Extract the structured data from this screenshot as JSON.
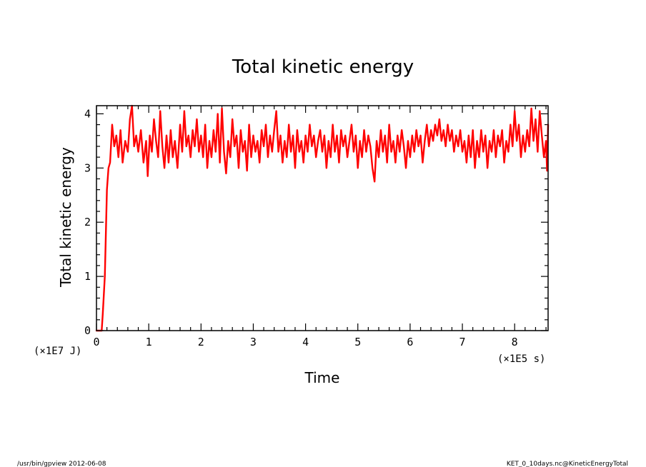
{
  "footer": {
    "left": "/usr/bin/gpview   2012-06-08",
    "right": "KET_0_10days.nc@KineticEnergyTotal"
  },
  "chart_data": {
    "type": "line",
    "title": "Total kinetic energy",
    "xlabel": "Time",
    "ylabel": "Total kinetic energy",
    "x_scale_label": "(×1E5 s)",
    "y_scale_label": "(×1E7 J)",
    "xlim": [
      0,
      8.64
    ],
    "ylim": [
      0,
      4.15
    ],
    "xticks": [
      0,
      1,
      2,
      3,
      4,
      5,
      6,
      7,
      8
    ],
    "yticks": [
      0,
      1,
      2,
      3,
      4
    ],
    "grid": false,
    "legend": "none",
    "line_color": "#ff0000",
    "series": [
      {
        "values": [
          [
            0.0,
            0.0
          ],
          [
            0.1,
            0.0
          ],
          [
            0.12,
            0.3
          ],
          [
            0.16,
            1.0
          ],
          [
            0.2,
            2.6
          ],
          [
            0.23,
            3.0
          ],
          [
            0.26,
            3.1
          ],
          [
            0.3,
            3.8
          ],
          [
            0.34,
            3.4
          ],
          [
            0.38,
            3.6
          ],
          [
            0.42,
            3.2
          ],
          [
            0.46,
            3.7
          ],
          [
            0.5,
            3.1
          ],
          [
            0.55,
            3.5
          ],
          [
            0.6,
            3.3
          ],
          [
            0.64,
            3.9
          ],
          [
            0.68,
            4.15
          ],
          [
            0.72,
            3.4
          ],
          [
            0.76,
            3.6
          ],
          [
            0.8,
            3.3
          ],
          [
            0.85,
            3.7
          ],
          [
            0.9,
            3.1
          ],
          [
            0.95,
            3.5
          ],
          [
            0.98,
            2.85
          ],
          [
            1.02,
            3.6
          ],
          [
            1.06,
            3.3
          ],
          [
            1.1,
            3.9
          ],
          [
            1.14,
            3.5
          ],
          [
            1.18,
            3.2
          ],
          [
            1.22,
            4.05
          ],
          [
            1.26,
            3.4
          ],
          [
            1.3,
            3.0
          ],
          [
            1.34,
            3.6
          ],
          [
            1.38,
            3.1
          ],
          [
            1.42,
            3.7
          ],
          [
            1.46,
            3.2
          ],
          [
            1.5,
            3.5
          ],
          [
            1.55,
            3.0
          ],
          [
            1.6,
            3.8
          ],
          [
            1.64,
            3.3
          ],
          [
            1.68,
            4.05
          ],
          [
            1.72,
            3.4
          ],
          [
            1.76,
            3.6
          ],
          [
            1.8,
            3.2
          ],
          [
            1.84,
            3.7
          ],
          [
            1.88,
            3.4
          ],
          [
            1.92,
            3.9
          ],
          [
            1.96,
            3.3
          ],
          [
            2.0,
            3.6
          ],
          [
            2.04,
            3.2
          ],
          [
            2.08,
            3.8
          ],
          [
            2.12,
            3.0
          ],
          [
            2.16,
            3.5
          ],
          [
            2.2,
            3.2
          ],
          [
            2.24,
            3.7
          ],
          [
            2.28,
            3.3
          ],
          [
            2.32,
            4.0
          ],
          [
            2.36,
            3.1
          ],
          [
            2.4,
            4.1
          ],
          [
            2.44,
            3.3
          ],
          [
            2.48,
            2.9
          ],
          [
            2.52,
            3.5
          ],
          [
            2.56,
            3.2
          ],
          [
            2.6,
            3.9
          ],
          [
            2.64,
            3.4
          ],
          [
            2.68,
            3.6
          ],
          [
            2.72,
            3.0
          ],
          [
            2.76,
            3.7
          ],
          [
            2.8,
            3.3
          ],
          [
            2.84,
            3.5
          ],
          [
            2.88,
            2.95
          ],
          [
            2.92,
            3.8
          ],
          [
            2.96,
            3.2
          ],
          [
            3.0,
            3.6
          ],
          [
            3.04,
            3.3
          ],
          [
            3.08,
            3.5
          ],
          [
            3.12,
            3.1
          ],
          [
            3.16,
            3.7
          ],
          [
            3.2,
            3.4
          ],
          [
            3.24,
            3.8
          ],
          [
            3.28,
            3.2
          ],
          [
            3.32,
            3.6
          ],
          [
            3.36,
            3.3
          ],
          [
            3.4,
            3.7
          ],
          [
            3.44,
            4.05
          ],
          [
            3.48,
            3.3
          ],
          [
            3.52,
            3.6
          ],
          [
            3.56,
            3.1
          ],
          [
            3.6,
            3.5
          ],
          [
            3.64,
            3.2
          ],
          [
            3.68,
            3.8
          ],
          [
            3.72,
            3.3
          ],
          [
            3.76,
            3.6
          ],
          [
            3.8,
            3.0
          ],
          [
            3.84,
            3.7
          ],
          [
            3.88,
            3.3
          ],
          [
            3.92,
            3.5
          ],
          [
            3.96,
            3.1
          ],
          [
            4.0,
            3.6
          ],
          [
            4.04,
            3.3
          ],
          [
            4.08,
            3.8
          ],
          [
            4.12,
            3.4
          ],
          [
            4.16,
            3.6
          ],
          [
            4.2,
            3.2
          ],
          [
            4.24,
            3.5
          ],
          [
            4.28,
            3.7
          ],
          [
            4.32,
            3.3
          ],
          [
            4.36,
            3.6
          ],
          [
            4.4,
            3.0
          ],
          [
            4.44,
            3.5
          ],
          [
            4.48,
            3.2
          ],
          [
            4.52,
            3.8
          ],
          [
            4.56,
            3.3
          ],
          [
            4.6,
            3.6
          ],
          [
            4.64,
            3.1
          ],
          [
            4.68,
            3.7
          ],
          [
            4.72,
            3.4
          ],
          [
            4.76,
            3.6
          ],
          [
            4.8,
            3.2
          ],
          [
            4.84,
            3.5
          ],
          [
            4.88,
            3.8
          ],
          [
            4.92,
            3.3
          ],
          [
            4.96,
            3.6
          ],
          [
            5.0,
            3.0
          ],
          [
            5.04,
            3.5
          ],
          [
            5.08,
            3.2
          ],
          [
            5.12,
            3.7
          ],
          [
            5.16,
            3.3
          ],
          [
            5.2,
            3.6
          ],
          [
            5.24,
            3.4
          ],
          [
            5.28,
            3.0
          ],
          [
            5.32,
            2.75
          ],
          [
            5.36,
            3.5
          ],
          [
            5.4,
            3.2
          ],
          [
            5.44,
            3.7
          ],
          [
            5.48,
            3.3
          ],
          [
            5.52,
            3.6
          ],
          [
            5.56,
            3.1
          ],
          [
            5.6,
            3.8
          ],
          [
            5.64,
            3.3
          ],
          [
            5.68,
            3.5
          ],
          [
            5.72,
            3.1
          ],
          [
            5.76,
            3.6
          ],
          [
            5.8,
            3.3
          ],
          [
            5.84,
            3.7
          ],
          [
            5.88,
            3.4
          ],
          [
            5.92,
            3.0
          ],
          [
            5.96,
            3.5
          ],
          [
            6.0,
            3.2
          ],
          [
            6.04,
            3.6
          ],
          [
            6.08,
            3.3
          ],
          [
            6.12,
            3.7
          ],
          [
            6.16,
            3.4
          ],
          [
            6.2,
            3.6
          ],
          [
            6.24,
            3.1
          ],
          [
            6.28,
            3.5
          ],
          [
            6.32,
            3.8
          ],
          [
            6.36,
            3.4
          ],
          [
            6.4,
            3.7
          ],
          [
            6.44,
            3.5
          ],
          [
            6.48,
            3.8
          ],
          [
            6.52,
            3.6
          ],
          [
            6.56,
            3.9
          ],
          [
            6.6,
            3.5
          ],
          [
            6.64,
            3.7
          ],
          [
            6.68,
            3.4
          ],
          [
            6.72,
            3.8
          ],
          [
            6.76,
            3.5
          ],
          [
            6.8,
            3.7
          ],
          [
            6.84,
            3.3
          ],
          [
            6.88,
            3.6
          ],
          [
            6.92,
            3.4
          ],
          [
            6.96,
            3.7
          ],
          [
            7.0,
            3.3
          ],
          [
            7.04,
            3.5
          ],
          [
            7.08,
            3.1
          ],
          [
            7.12,
            3.6
          ],
          [
            7.16,
            3.2
          ],
          [
            7.2,
            3.7
          ],
          [
            7.24,
            3.0
          ],
          [
            7.28,
            3.5
          ],
          [
            7.32,
            3.2
          ],
          [
            7.36,
            3.7
          ],
          [
            7.4,
            3.3
          ],
          [
            7.44,
            3.6
          ],
          [
            7.48,
            3.0
          ],
          [
            7.52,
            3.5
          ],
          [
            7.56,
            3.3
          ],
          [
            7.6,
            3.7
          ],
          [
            7.64,
            3.2
          ],
          [
            7.68,
            3.6
          ],
          [
            7.72,
            3.4
          ],
          [
            7.76,
            3.7
          ],
          [
            7.8,
            3.1
          ],
          [
            7.84,
            3.5
          ],
          [
            7.88,
            3.3
          ],
          [
            7.92,
            3.8
          ],
          [
            7.96,
            3.4
          ],
          [
            8.0,
            4.05
          ],
          [
            8.04,
            3.5
          ],
          [
            8.08,
            3.8
          ],
          [
            8.12,
            3.2
          ],
          [
            8.16,
            3.6
          ],
          [
            8.2,
            3.3
          ],
          [
            8.24,
            3.7
          ],
          [
            8.28,
            3.4
          ],
          [
            8.32,
            4.1
          ],
          [
            8.36,
            3.5
          ],
          [
            8.4,
            3.9
          ],
          [
            8.44,
            3.3
          ],
          [
            8.48,
            4.05
          ],
          [
            8.52,
            3.6
          ],
          [
            8.56,
            3.2
          ],
          [
            8.6,
            3.5
          ],
          [
            8.62,
            2.95
          ],
          [
            8.64,
            3.8
          ]
        ]
      }
    ]
  }
}
